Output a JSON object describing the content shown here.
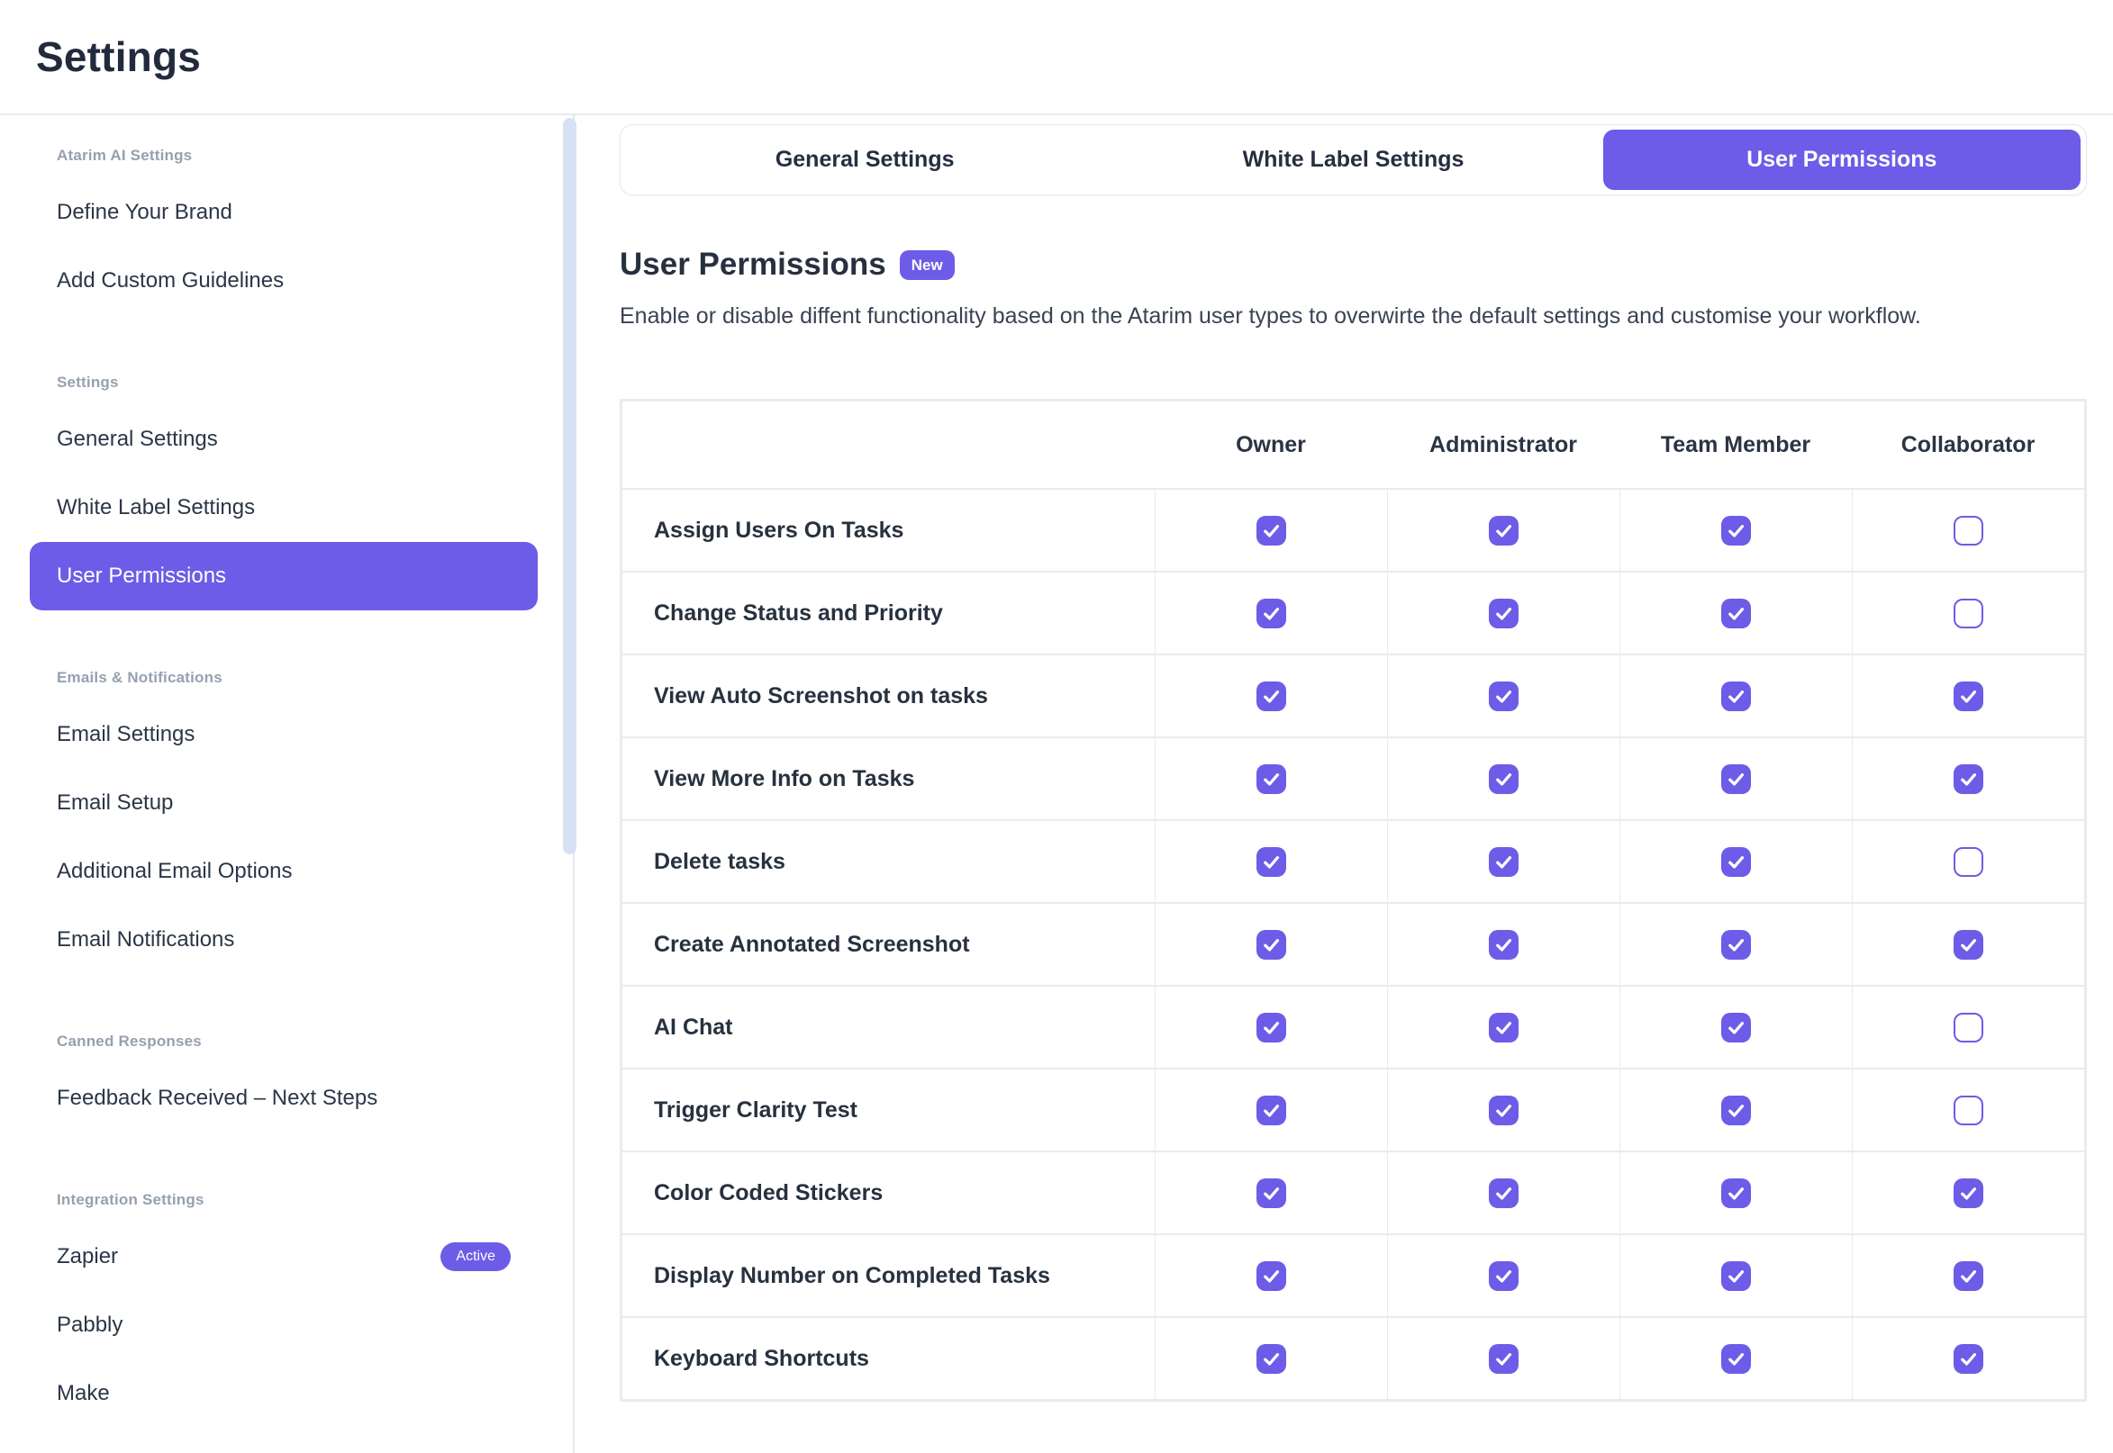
{
  "header": {
    "title": "Settings"
  },
  "colors": {
    "accent": "#6C5CE7",
    "scrollbar": "#D6E2F4",
    "table_border": "#E9EBEF"
  },
  "sidebar": {
    "sections": [
      {
        "title": "Atarim AI Settings",
        "items": [
          {
            "label": "Define Your Brand"
          },
          {
            "label": "Add Custom Guidelines"
          }
        ]
      },
      {
        "title": "Settings",
        "items": [
          {
            "label": "General Settings"
          },
          {
            "label": "White Label Settings"
          },
          {
            "label": "User Permissions",
            "active": true
          }
        ]
      },
      {
        "title": "Emails & Notifications",
        "items": [
          {
            "label": "Email Settings"
          },
          {
            "label": "Email Setup"
          },
          {
            "label": "Additional Email Options"
          },
          {
            "label": "Email Notifications"
          }
        ]
      },
      {
        "title": "Canned Responses",
        "items": [
          {
            "label": "Feedback Received – Next Steps"
          }
        ]
      },
      {
        "title": "Integration Settings",
        "items": [
          {
            "label": "Zapier",
            "badge": "Active"
          },
          {
            "label": "Pabbly"
          },
          {
            "label": "Make"
          }
        ]
      }
    ]
  },
  "tabs": {
    "items": [
      {
        "label": "General Settings"
      },
      {
        "label": "White Label Settings"
      },
      {
        "label": "User Permissions",
        "active": true
      }
    ]
  },
  "content": {
    "title": "User Permissions",
    "badge": "New",
    "description": "Enable or disable diffent functionality based on the Atarim user types to overwirte the default settings and customise your workflow."
  },
  "table": {
    "columns": [
      "Owner",
      "Administrator",
      "Team Member",
      "Collaborator"
    ],
    "rows": [
      {
        "label": "Assign Users On Tasks",
        "permissions": [
          true,
          true,
          true,
          false
        ]
      },
      {
        "label": "Change Status and Priority",
        "permissions": [
          true,
          true,
          true,
          false
        ]
      },
      {
        "label": "View Auto Screenshot on tasks",
        "permissions": [
          true,
          true,
          true,
          true
        ]
      },
      {
        "label": "View More Info on Tasks",
        "permissions": [
          true,
          true,
          true,
          true
        ]
      },
      {
        "label": "Delete tasks",
        "permissions": [
          true,
          true,
          true,
          false
        ]
      },
      {
        "label": "Create Annotated Screenshot",
        "permissions": [
          true,
          true,
          true,
          true
        ]
      },
      {
        "label": "AI Chat",
        "permissions": [
          true,
          true,
          true,
          false
        ]
      },
      {
        "label": "Trigger Clarity Test",
        "permissions": [
          true,
          true,
          true,
          false
        ]
      },
      {
        "label": "Color Coded Stickers",
        "permissions": [
          true,
          true,
          true,
          true
        ]
      },
      {
        "label": "Display Number on Completed Tasks",
        "permissions": [
          true,
          true,
          true,
          true
        ]
      },
      {
        "label": "Keyboard Shortcuts",
        "permissions": [
          true,
          true,
          true,
          true
        ]
      }
    ]
  }
}
